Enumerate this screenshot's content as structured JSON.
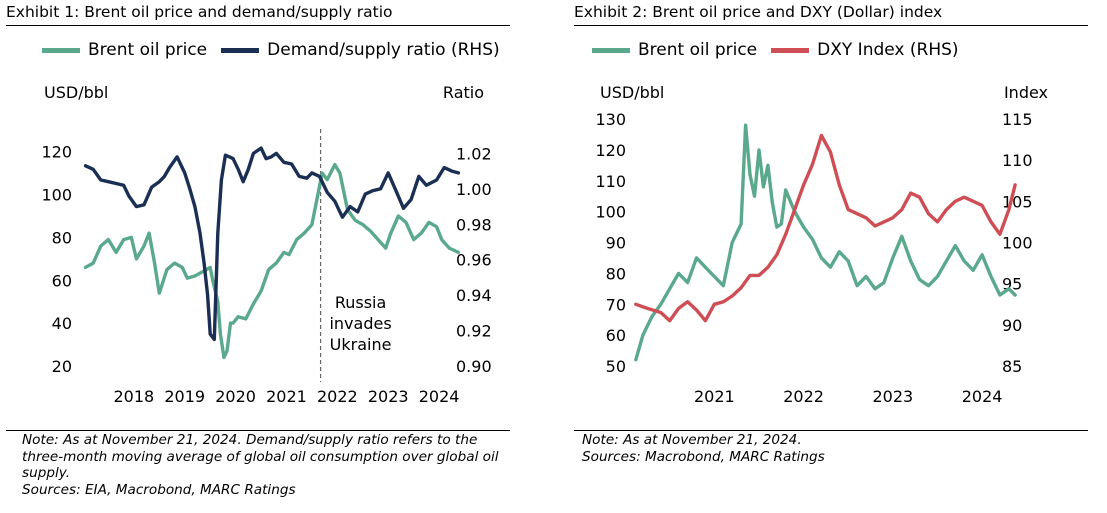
{
  "colors": {
    "brent": "#5aa98d",
    "ratio": "#1b2f55",
    "dxy": "#cf4e55",
    "event_line": "#666666"
  },
  "charts": [
    {
      "title": "Exhibit 1: Brent oil price and demand/supply ratio",
      "note_lines": [
        "Note: As at November 21, 2024. Demand/supply ratio refers to the",
        "three-month moving average of global oil consumption over global oil",
        "supply.",
        "Sources: EIA, Macrobond, MARC Ratings"
      ]
    },
    {
      "title": "Exhibit 2: Brent oil price and DXY (Dollar) index",
      "note_lines": [
        "Note: As at November 21, 2024.",
        "Sources: Macrobond, MARC Ratings"
      ]
    }
  ],
  "chart_data": [
    {
      "type": "line",
      "title": "Exhibit 1: Brent oil price and demand/supply ratio",
      "ylabel": "USD/bbl",
      "y2label": "Ratio",
      "x_ticks": [
        "2018",
        "2019",
        "2020",
        "2021",
        "2022",
        "2023",
        "2024"
      ],
      "xlim": [
        2017.5,
        2024.95
      ],
      "ylim": [
        20,
        125
      ],
      "y_ticks": [
        20,
        40,
        60,
        80,
        100,
        120
      ],
      "y2lim": [
        0.9,
        1.027
      ],
      "y2_ticks": [
        "0.90",
        "0.92",
        "0.94",
        "0.96",
        "0.98",
        "1.00",
        "1.02"
      ],
      "grid": false,
      "legend": "top",
      "annotation": {
        "text": [
          "Russia",
          "invades",
          "Ukraine"
        ],
        "x": 2022.17
      },
      "series": [
        {
          "name": "Brent oil price",
          "axis": "left",
          "x": [
            2017.55,
            2017.7,
            2017.85,
            2018.0,
            2018.15,
            2018.3,
            2018.45,
            2018.55,
            2018.7,
            2018.8,
            2018.9,
            2019.0,
            2019.15,
            2019.3,
            2019.45,
            2019.55,
            2019.7,
            2019.85,
            2020.0,
            2020.05,
            2020.15,
            2020.2,
            2020.27,
            2020.33,
            2020.4,
            2020.45,
            2020.55,
            2020.7,
            2020.85,
            2021.0,
            2021.15,
            2021.3,
            2021.45,
            2021.55,
            2021.7,
            2021.85,
            2022.0,
            2022.1,
            2022.2,
            2022.3,
            2022.45,
            2022.55,
            2022.7,
            2022.85,
            2023.0,
            2023.15,
            2023.3,
            2023.45,
            2023.55,
            2023.7,
            2023.85,
            2024.0,
            2024.15,
            2024.3,
            2024.45,
            2024.55,
            2024.7,
            2024.88
          ],
          "values": [
            66,
            68,
            76,
            79,
            73,
            79,
            80,
            70,
            76,
            82,
            69,
            54,
            65,
            68,
            66,
            61,
            62,
            64,
            66,
            60,
            50,
            35,
            24,
            27,
            40,
            40,
            43,
            42,
            49,
            55,
            65,
            68,
            73,
            72,
            79,
            82,
            86,
            98,
            110,
            107,
            114,
            110,
            93,
            88,
            86,
            83,
            79,
            75,
            82,
            90,
            87,
            79,
            82,
            87,
            85,
            79,
            75,
            73
          ]
        },
        {
          "name": "Demand/supply ratio (RHS)",
          "axis": "right",
          "x": [
            2017.55,
            2017.7,
            2017.85,
            2018.0,
            2018.15,
            2018.3,
            2018.4,
            2018.55,
            2018.7,
            2018.85,
            2019.0,
            2019.1,
            2019.2,
            2019.35,
            2019.5,
            2019.6,
            2019.7,
            2019.8,
            2019.88,
            2019.95,
            2020.0,
            2020.08,
            2020.15,
            2020.22,
            2020.3,
            2020.38,
            2020.45,
            2020.55,
            2020.65,
            2020.75,
            2020.85,
            2021.0,
            2021.1,
            2021.2,
            2021.3,
            2021.45,
            2021.6,
            2021.75,
            2021.9,
            2022.0,
            2022.15,
            2022.3,
            2022.45,
            2022.6,
            2022.75,
            2022.9,
            2023.05,
            2023.2,
            2023.35,
            2023.5,
            2023.65,
            2023.8,
            2023.95,
            2024.1,
            2024.25,
            2024.45,
            2024.6,
            2024.75,
            2024.88
          ],
          "values": [
            1.013,
            1.011,
            1.005,
            1.004,
            1.003,
            1.002,
            0.996,
            0.99,
            0.991,
            1.001,
            1.004,
            1.007,
            1.012,
            1.018,
            1.009,
            1.0,
            0.99,
            0.975,
            0.958,
            0.94,
            0.918,
            0.915,
            0.975,
            1.005,
            1.019,
            1.018,
            1.017,
            1.011,
            1.004,
            1.011,
            1.02,
            1.023,
            1.017,
            1.018,
            1.02,
            1.015,
            1.014,
            1.007,
            1.006,
            1.009,
            1.007,
            0.998,
            0.993,
            0.984,
            0.99,
            0.987,
            0.997,
            0.999,
            1.0,
            1.009,
            0.999,
            0.989,
            0.994,
            1.007,
            1.002,
            1.005,
            1.012,
            1.01,
            1.009
          ]
        }
      ]
    },
    {
      "type": "line",
      "title": "Exhibit 2: Brent oil price and DXY (Dollar) index",
      "ylabel": "USD/bbl",
      "y2label": "Index",
      "x_ticks": [
        "2021",
        "2022",
        "2023",
        "2024"
      ],
      "xlim": [
        2020.6,
        2024.88
      ],
      "ylim": [
        50,
        130
      ],
      "y_ticks": [
        50,
        60,
        70,
        80,
        90,
        100,
        110,
        120,
        130
      ],
      "y2lim": [
        85,
        115
      ],
      "y2_ticks": [
        85,
        90,
        95,
        100,
        105,
        110,
        115
      ],
      "grid": false,
      "legend": "top",
      "series": [
        {
          "name": "Brent oil price",
          "axis": "left",
          "x": [
            2020.62,
            2020.7,
            2020.8,
            2020.9,
            2021.0,
            2021.1,
            2021.2,
            2021.3,
            2021.4,
            2021.5,
            2021.6,
            2021.7,
            2021.8,
            2021.85,
            2021.9,
            2021.95,
            2022.0,
            2022.05,
            2022.1,
            2022.15,
            2022.2,
            2022.25,
            2022.3,
            2022.4,
            2022.5,
            2022.6,
            2022.7,
            2022.8,
            2022.9,
            2023.0,
            2023.1,
            2023.2,
            2023.3,
            2023.4,
            2023.5,
            2023.6,
            2023.7,
            2023.8,
            2023.9,
            2024.0,
            2024.1,
            2024.2,
            2024.3,
            2024.4,
            2024.5,
            2024.6,
            2024.7,
            2024.8,
            2024.87
          ],
          "values": [
            52,
            60,
            66,
            70,
            75,
            80,
            77,
            85,
            82,
            79,
            76,
            90,
            96,
            128,
            112,
            105,
            120,
            108,
            115,
            103,
            95,
            96,
            107,
            100,
            95,
            91,
            85,
            82,
            87,
            84,
            76,
            79,
            75,
            77,
            85,
            92,
            84,
            78,
            76,
            79,
            84,
            89,
            84,
            81,
            86,
            79,
            73,
            75,
            73
          ]
        },
        {
          "name": "DXY Index (RHS)",
          "axis": "right",
          "x": [
            2020.62,
            2020.75,
            2020.9,
            2021.0,
            2021.1,
            2021.2,
            2021.3,
            2021.4,
            2021.5,
            2021.6,
            2021.7,
            2021.8,
            2021.9,
            2022.0,
            2022.1,
            2022.2,
            2022.3,
            2022.4,
            2022.5,
            2022.6,
            2022.7,
            2022.8,
            2022.9,
            2023.0,
            2023.1,
            2023.2,
            2023.3,
            2023.4,
            2023.5,
            2023.6,
            2023.7,
            2023.8,
            2023.9,
            2024.0,
            2024.1,
            2024.2,
            2024.3,
            2024.4,
            2024.5,
            2024.6,
            2024.7,
            2024.8,
            2024.87
          ],
          "values": [
            92.5,
            92.0,
            91.5,
            90.5,
            92.0,
            92.8,
            91.8,
            90.5,
            92.5,
            92.8,
            93.5,
            94.5,
            96.0,
            96.0,
            97.0,
            98.5,
            101.0,
            104.0,
            107.0,
            109.5,
            113.0,
            111.0,
            107.0,
            104.0,
            103.5,
            103.0,
            102.0,
            102.5,
            103.0,
            104.0,
            106.0,
            105.5,
            103.5,
            102.5,
            104.0,
            105.0,
            105.5,
            105.0,
            104.5,
            102.5,
            101.0,
            104.0,
            107.0
          ]
        }
      ]
    }
  ]
}
